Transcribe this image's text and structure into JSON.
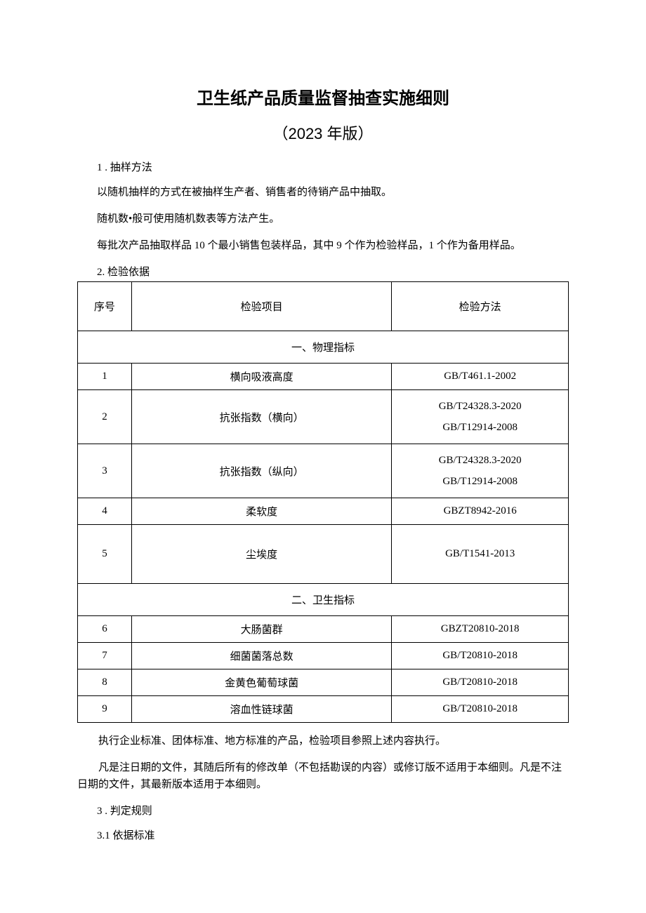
{
  "doc": {
    "title": "卫生纸产品质量监督抽查实施细则",
    "subtitle": "（2023 年版）",
    "s1_heading": "1 . 抽样方法",
    "p1": "以随机抽样的方式在被抽样生产者、销售者的待销产品中抽取。",
    "p2": "随机数•般可使用随机数表等方法产生。",
    "p3": "每批次产品抽取样品 10 个最小销售包装样品，其中 9 个作为检验样品，1 个作为备用样品。",
    "s2_heading": "2. 检验依据",
    "table": {
      "headers": {
        "num": "序号",
        "item": "检验项目",
        "method": "检验方法"
      },
      "section1": "一、物理指标",
      "section2": "二、卫生指标",
      "rows": [
        {
          "num": "1",
          "item": "横向吸液高度",
          "method": "GB/T461.1-2002"
        },
        {
          "num": "2",
          "item": "抗张指数（横向）",
          "method_a": "GB/T24328.3-2020",
          "method_b": "GB/T12914-2008"
        },
        {
          "num": "3",
          "item": "抗张指数（纵向）",
          "method_a": "GB/T24328.3-2020",
          "method_b": "GB/T12914-2008"
        },
        {
          "num": "4",
          "item": "柔软度",
          "method": "GBZT8942-2016"
        },
        {
          "num": "5",
          "item": "尘埃度",
          "method": "GB/T1541-2013"
        },
        {
          "num": "6",
          "item": "大肠菌群",
          "method": "GBZT20810-2018"
        },
        {
          "num": "7",
          "item": "细菌菌落总数",
          "method": "GB/T20810-2018"
        },
        {
          "num": "8",
          "item": "金黄色葡萄球菌",
          "method": "GB/T20810-2018"
        },
        {
          "num": "9",
          "item": "溶血性链球菌",
          "method": "GB/T20810-2018"
        }
      ]
    },
    "note1": "执行企业标准、团体标准、地方标准的产品，检验项目参照上述内容执行。",
    "note2": "凡是注日期的文件，其随后所有的修改单（不包括勘误的内容）或修订版不适用于本细则。凡是不注日期的文件，其最新版本适用于本细则。",
    "s3_heading": "3 . 判定规则",
    "s3_1": "3.1  依据标准"
  },
  "style": {
    "page_bg": "#ffffff",
    "text_color": "#000000",
    "border_color": "#000000",
    "title_fontsize": 24,
    "subtitle_fontsize": 22,
    "body_fontsize": 15
  }
}
